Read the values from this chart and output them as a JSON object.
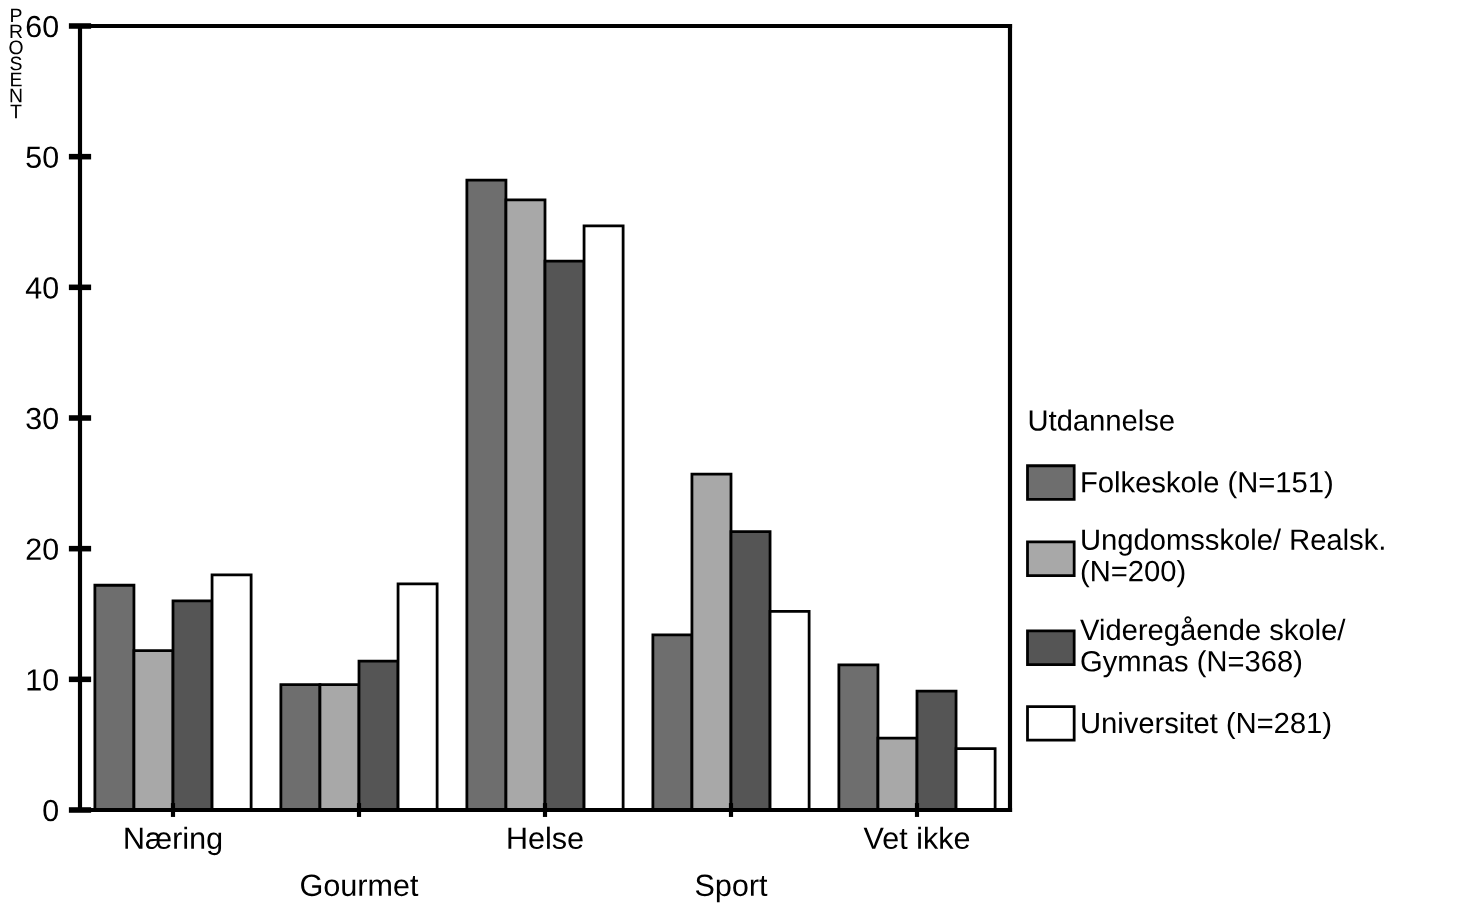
{
  "chart_data": {
    "type": "bar",
    "ylabel": "PROSENT",
    "legend_title": "Utdannelse",
    "categories": [
      "Næring",
      "Gourmet",
      "Helse",
      "Sport",
      "Vet ikke"
    ],
    "series": [
      {
        "name": "Folkeskole (N=151)",
        "color": "#6e6e6e",
        "values": [
          17.2,
          9.6,
          48.2,
          13.4,
          11.1
        ]
      },
      {
        "name": "Ungdomsskole/ Realsk.\n(N=200)",
        "color": "#a8a8a8",
        "values": [
          12.2,
          9.6,
          46.7,
          25.7,
          5.5
        ]
      },
      {
        "name": "Videregående skole/\nGymnas (N=368)",
        "color": "#555555",
        "values": [
          16.0,
          11.4,
          42.0,
          21.3,
          9.1
        ]
      },
      {
        "name": "Universitet (N=281)",
        "color": "#ffffff",
        "values": [
          18.0,
          17.3,
          44.7,
          15.2,
          4.7
        ]
      }
    ],
    "ylim": [
      0,
      60
    ],
    "yticks": [
      0,
      10,
      20,
      30,
      40,
      50,
      60
    ],
    "grid": false,
    "legend": "right"
  }
}
